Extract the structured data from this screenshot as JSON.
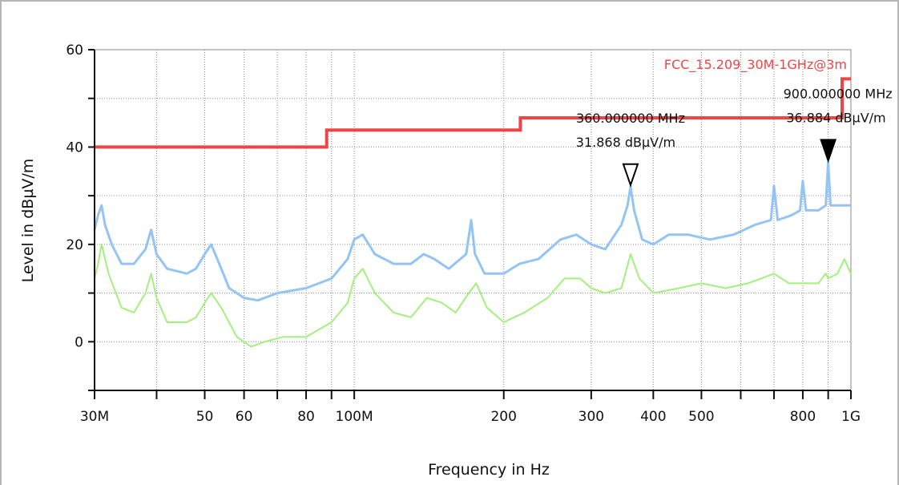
{
  "chart_data": {
    "type": "line",
    "title": "",
    "xlabel": "Frequency in Hz",
    "ylabel": "Level in dBµV/m",
    "x_scale": "log",
    "xlim": [
      30000000,
      1000000000
    ],
    "ylim": [
      -10,
      60
    ],
    "grid": true,
    "x_ticks": [
      {
        "value": 30000000,
        "label": "30M",
        "labeled": true
      },
      {
        "value": 40000000,
        "label": "",
        "labeled": false
      },
      {
        "value": 50000000,
        "label": "50",
        "labeled": true
      },
      {
        "value": 60000000,
        "label": "60",
        "labeled": true
      },
      {
        "value": 70000000,
        "label": "",
        "labeled": false
      },
      {
        "value": 80000000,
        "label": "80",
        "labeled": true
      },
      {
        "value": 90000000,
        "label": "",
        "labeled": false
      },
      {
        "value": 100000000,
        "label": "100M",
        "labeled": true
      },
      {
        "value": 200000000,
        "label": "200",
        "labeled": true
      },
      {
        "value": 300000000,
        "label": "300",
        "labeled": true
      },
      {
        "value": 400000000,
        "label": "400",
        "labeled": true
      },
      {
        "value": 500000000,
        "label": "500",
        "labeled": true
      },
      {
        "value": 600000000,
        "label": "",
        "labeled": false
      },
      {
        "value": 700000000,
        "label": "",
        "labeled": false
      },
      {
        "value": 800000000,
        "label": "800",
        "labeled": true
      },
      {
        "value": 900000000,
        "label": "",
        "labeled": false
      },
      {
        "value": 1000000000,
        "label": "1G",
        "labeled": true
      }
    ],
    "y_ticks": [
      {
        "value": -10,
        "label": ""
      },
      {
        "value": 0,
        "label": "0"
      },
      {
        "value": 10,
        "label": ""
      },
      {
        "value": 20,
        "label": "20"
      },
      {
        "value": 30,
        "label": ""
      },
      {
        "value": 40,
        "label": "40"
      },
      {
        "value": 50,
        "label": ""
      },
      {
        "value": 60,
        "label": "60"
      }
    ],
    "limit_line": {
      "name": "FCC_15.209_30M-1GHz@3m",
      "color": "#f04545",
      "points": [
        [
          30000000,
          40
        ],
        [
          88000000,
          40
        ],
        [
          88000000,
          43.5
        ],
        [
          216000000,
          43.5
        ],
        [
          216000000,
          46
        ],
        [
          960000000,
          46
        ],
        [
          960000000,
          54
        ],
        [
          1000000000,
          54
        ]
      ]
    },
    "series": [
      {
        "color": "#94c4f4",
        "points": [
          [
            30000000,
            23
          ],
          [
            30500000,
            26
          ],
          [
            31000000,
            28
          ],
          [
            31500000,
            24
          ],
          [
            32500000,
            20
          ],
          [
            34000000,
            16
          ],
          [
            36000000,
            16
          ],
          [
            38000000,
            19
          ],
          [
            39000000,
            23
          ],
          [
            40000000,
            18
          ],
          [
            42000000,
            15
          ],
          [
            46000000,
            14
          ],
          [
            48000000,
            15
          ],
          [
            50000000,
            18
          ],
          [
            51500000,
            20
          ],
          [
            53000000,
            17
          ],
          [
            56000000,
            11
          ],
          [
            60000000,
            9
          ],
          [
            64000000,
            8.5
          ],
          [
            70000000,
            10
          ],
          [
            80000000,
            11
          ],
          [
            90000000,
            13
          ],
          [
            97000000,
            17
          ],
          [
            100000000,
            21
          ],
          [
            104000000,
            22
          ],
          [
            110000000,
            18
          ],
          [
            120000000,
            16
          ],
          [
            130000000,
            16
          ],
          [
            138000000,
            18
          ],
          [
            145000000,
            17
          ],
          [
            155000000,
            15
          ],
          [
            168000000,
            18
          ],
          [
            172000000,
            25
          ],
          [
            175000000,
            18
          ],
          [
            183000000,
            14
          ],
          [
            200000000,
            14
          ],
          [
            215000000,
            16
          ],
          [
            235000000,
            17
          ],
          [
            260000000,
            21
          ],
          [
            280000000,
            22
          ],
          [
            300000000,
            20
          ],
          [
            320000000,
            19
          ],
          [
            345000000,
            24
          ],
          [
            355000000,
            28
          ],
          [
            360000000,
            31.868
          ],
          [
            366000000,
            27
          ],
          [
            380000000,
            21
          ],
          [
            400000000,
            20
          ],
          [
            430000000,
            22
          ],
          [
            470000000,
            22
          ],
          [
            520000000,
            21
          ],
          [
            580000000,
            22
          ],
          [
            640000000,
            24
          ],
          [
            690000000,
            25
          ],
          [
            700000000,
            32
          ],
          [
            712000000,
            25
          ],
          [
            760000000,
            26
          ],
          [
            790000000,
            27
          ],
          [
            800000000,
            33
          ],
          [
            812000000,
            27
          ],
          [
            860000000,
            27
          ],
          [
            890000000,
            28
          ],
          [
            900000000,
            36.884
          ],
          [
            910000000,
            28
          ],
          [
            950000000,
            28
          ],
          [
            1000000000,
            28
          ]
        ]
      },
      {
        "color": "#a4f07c",
        "points": [
          [
            30000000,
            13
          ],
          [
            30500000,
            16
          ],
          [
            31000000,
            20
          ],
          [
            32000000,
            14
          ],
          [
            34000000,
            7
          ],
          [
            36000000,
            6
          ],
          [
            38000000,
            10
          ],
          [
            39000000,
            14
          ],
          [
            40000000,
            9
          ],
          [
            42000000,
            4
          ],
          [
            46000000,
            4
          ],
          [
            48000000,
            5
          ],
          [
            50000000,
            8
          ],
          [
            51500000,
            10
          ],
          [
            54000000,
            7
          ],
          [
            58000000,
            1
          ],
          [
            62000000,
            -1
          ],
          [
            66000000,
            0
          ],
          [
            72000000,
            1
          ],
          [
            80000000,
            1
          ],
          [
            90000000,
            4
          ],
          [
            97000000,
            8
          ],
          [
            100000000,
            13
          ],
          [
            104000000,
            15
          ],
          [
            110000000,
            10
          ],
          [
            120000000,
            6
          ],
          [
            130000000,
            5
          ],
          [
            140000000,
            9
          ],
          [
            150000000,
            8
          ],
          [
            160000000,
            6
          ],
          [
            170000000,
            10
          ],
          [
            176000000,
            12
          ],
          [
            185000000,
            7
          ],
          [
            200000000,
            4
          ],
          [
            220000000,
            6
          ],
          [
            245000000,
            9
          ],
          [
            265000000,
            13
          ],
          [
            285000000,
            13
          ],
          [
            300000000,
            11
          ],
          [
            320000000,
            10
          ],
          [
            345000000,
            11
          ],
          [
            360000000,
            18
          ],
          [
            375000000,
            13
          ],
          [
            400000000,
            10
          ],
          [
            450000000,
            11
          ],
          [
            500000000,
            12
          ],
          [
            560000000,
            11
          ],
          [
            620000000,
            12
          ],
          [
            660000000,
            13
          ],
          [
            700000000,
            14
          ],
          [
            750000000,
            12
          ],
          [
            790000000,
            12
          ],
          [
            820000000,
            12
          ],
          [
            860000000,
            12
          ],
          [
            890000000,
            14
          ],
          [
            900000000,
            13
          ],
          [
            940000000,
            14
          ],
          [
            970000000,
            17
          ],
          [
            1000000000,
            14
          ]
        ]
      }
    ],
    "markers": [
      {
        "freq": 360000000,
        "level": 31.868,
        "style": "open",
        "label_freq": "360.000000 MHz",
        "label_level": "31.868 dBµV/m"
      },
      {
        "freq": 900000000,
        "level": 36.884,
        "style": "filled",
        "label_freq": "900.000000 MHz",
        "label_level": "36.884 dBµV/m"
      }
    ]
  }
}
